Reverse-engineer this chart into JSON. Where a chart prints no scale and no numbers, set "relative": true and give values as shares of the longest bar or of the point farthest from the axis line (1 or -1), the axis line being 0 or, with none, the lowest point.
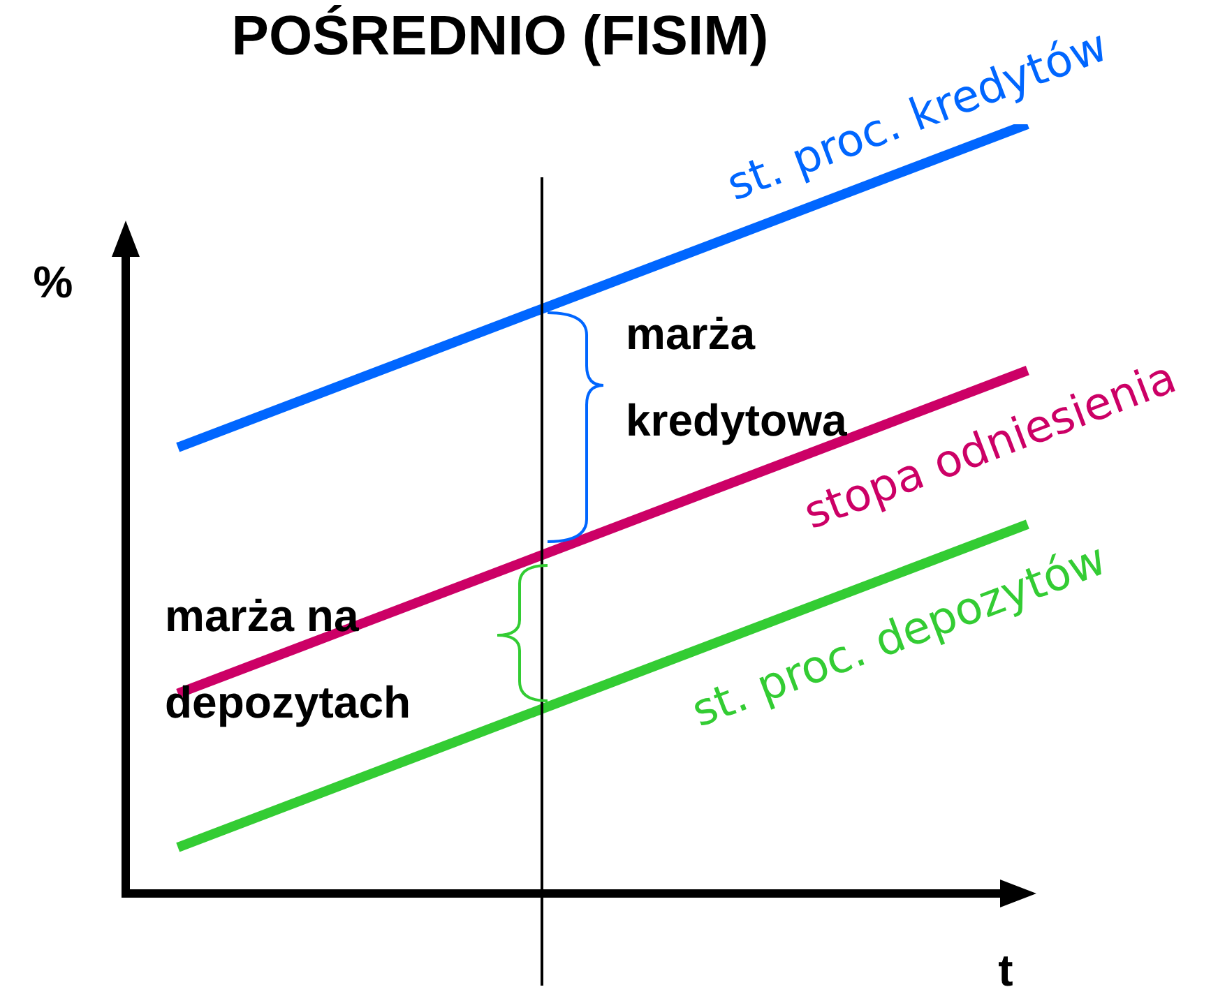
{
  "chart_data": {
    "type": "line",
    "title": "POŚREDNIO (FISIM)",
    "xlabel": "t",
    "ylabel": "%",
    "relative": true,
    "legend": false,
    "categories": [
      null,
      null,
      null,
      null,
      null,
      null,
      null,
      null
    ],
    "series": [
      {
        "name": "st. proc. kredytów",
        "color": "#0066ff",
        "values": [
          0.58,
          0.64,
          0.7,
          0.76,
          0.82,
          0.88,
          0.94,
          1
        ]
      },
      {
        "name": "stopa odniesienia",
        "color": "#cc0066",
        "values": [
          0.26,
          0.32,
          0.38,
          0.44,
          0.5,
          0.56,
          0.62,
          0.68
        ]
      },
      {
        "name": "st. proc. depozytów",
        "color": "#33cc33",
        "values": [
          0.06,
          0.12,
          0.18,
          0.24,
          0.3,
          0.36,
          0.42,
          0.48
        ]
      }
    ],
    "annotations": [
      "marża kredytowa",
      "marża na depozytach"
    ]
  }
}
